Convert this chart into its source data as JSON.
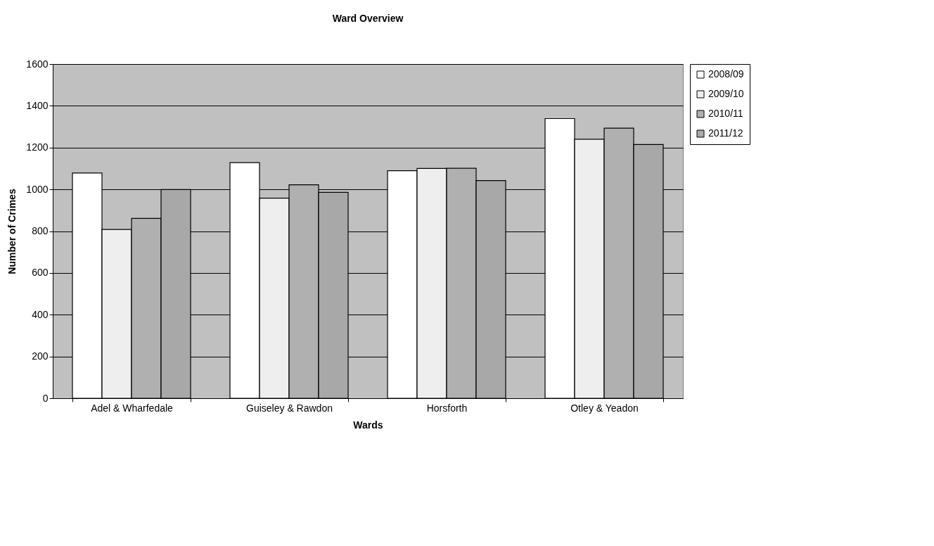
{
  "chart_data": {
    "type": "bar",
    "title": "Ward Overview",
    "xlabel": "Wards",
    "ylabel": "Number of Crimes",
    "categories": [
      "Adel & Wharfedale",
      "Guiseley & Rawdon",
      "Horsforth",
      "Otley & Yeadon"
    ],
    "series": [
      {
        "name": "2008/09",
        "color": "#ffffff",
        "values": [
          1078,
          1128,
          1089,
          1339
        ]
      },
      {
        "name": "2009/10",
        "color": "#eeeeee",
        "values": [
          808,
          958,
          1100,
          1240
        ]
      },
      {
        "name": "2010/11",
        "color": "#b0b0b0",
        "values": [
          861,
          1022,
          1101,
          1293
        ]
      },
      {
        "name": "2011/12",
        "color": "#a8a8a8",
        "values": [
          999,
          986,
          1042,
          1215
        ]
      }
    ],
    "ylim": [
      0,
      1600
    ],
    "yticks": [
      0,
      200,
      400,
      600,
      800,
      1000,
      1200,
      1400,
      1600
    ],
    "grid": "y",
    "legend": "right"
  }
}
